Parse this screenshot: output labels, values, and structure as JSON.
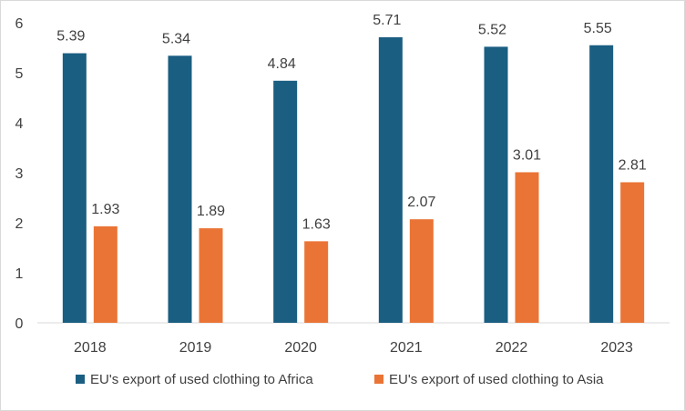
{
  "chart_data": {
    "type": "bar",
    "title": "",
    "xlabel": "",
    "ylabel": "",
    "categories": [
      "2018",
      "2019",
      "2020",
      "2021",
      "2022",
      "2023"
    ],
    "series": [
      {
        "name": "EU's export of used clothing to Africa",
        "values": [
          5.39,
          5.34,
          4.84,
          5.71,
          5.52,
          5.55
        ],
        "color": "#1a5e82"
      },
      {
        "name": "EU's export of used clothing to Asia",
        "values": [
          1.93,
          1.89,
          1.63,
          2.07,
          3.01,
          2.81
        ],
        "color": "#ea7435"
      }
    ],
    "ylim": [
      0,
      6
    ],
    "yticks": [
      0,
      1,
      2,
      3,
      4,
      5,
      6
    ],
    "grid": false,
    "legend_position": "bottom",
    "data_labels": true
  }
}
